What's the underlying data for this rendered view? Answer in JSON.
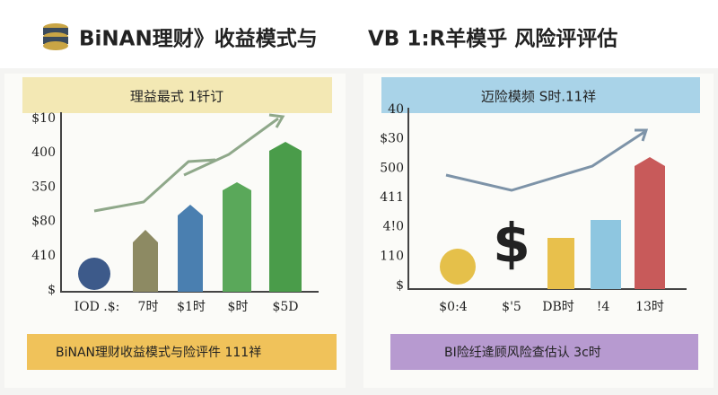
{
  "header": {
    "title_left": "BiNAN理财》收益模式与",
    "title_right": "VB 1:R羊模乎  风险评评估"
  },
  "left_panel": {
    "banner": "理益最式 1钎订",
    "y_labels": [
      "$10",
      "400",
      "350",
      "$80",
      "410",
      "$"
    ],
    "x_labels": [
      "IOD .$:",
      "7时",
      "$1时",
      "$时",
      "$5D"
    ],
    "footer": "BiNAN理财收益模式与险评件 111祥"
  },
  "right_panel": {
    "banner": "迈险模频 S时.11祥",
    "y_labels": [
      "40",
      "$30",
      "500",
      "411",
      "4!0",
      "110",
      "$"
    ],
    "x_labels": [
      "$0:4",
      "$'5",
      "DB时",
      "!4",
      "13时"
    ],
    "footer": "BI险纴逄顾风险查估认 3c时"
  }
}
